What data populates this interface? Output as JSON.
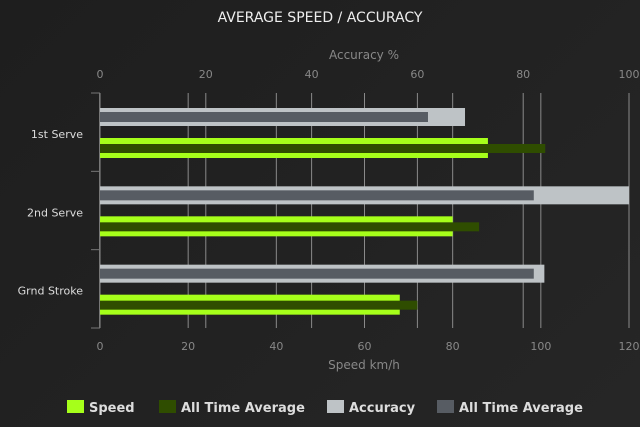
{
  "chart_data": {
    "type": "bar",
    "orientation": "horizontal",
    "title": "AVERAGE SPEED / ACCURACY",
    "categories": [
      "1st Serve",
      "2nd Serve",
      "Grnd Stroke"
    ],
    "x_bottom": {
      "label": "Speed km/h",
      "range": [
        0,
        120
      ],
      "ticks": [
        "0",
        "20",
        "40",
        "60",
        "80",
        "100",
        "120"
      ]
    },
    "x_top": {
      "label": "Accuracy %",
      "range": [
        0,
        100
      ],
      "ticks": [
        "0",
        "20",
        "40",
        "60",
        "80",
        "100"
      ]
    },
    "series": [
      {
        "name": "Speed",
        "axis": "bottom",
        "color": "#a6ff1a",
        "values": [
          88,
          80,
          68
        ]
      },
      {
        "name": "All Time Average",
        "axis": "bottom",
        "color": "#2f4d00",
        "values": [
          101,
          86,
          72
        ]
      },
      {
        "name": "Accuracy",
        "axis": "top",
        "color": "#bec3c6",
        "values": [
          69,
          100,
          84
        ]
      },
      {
        "name": "All Time Average",
        "axis": "top",
        "color": "#575c63",
        "values": [
          62,
          82,
          82
        ]
      }
    ],
    "grid": true,
    "legend": "bottom"
  }
}
